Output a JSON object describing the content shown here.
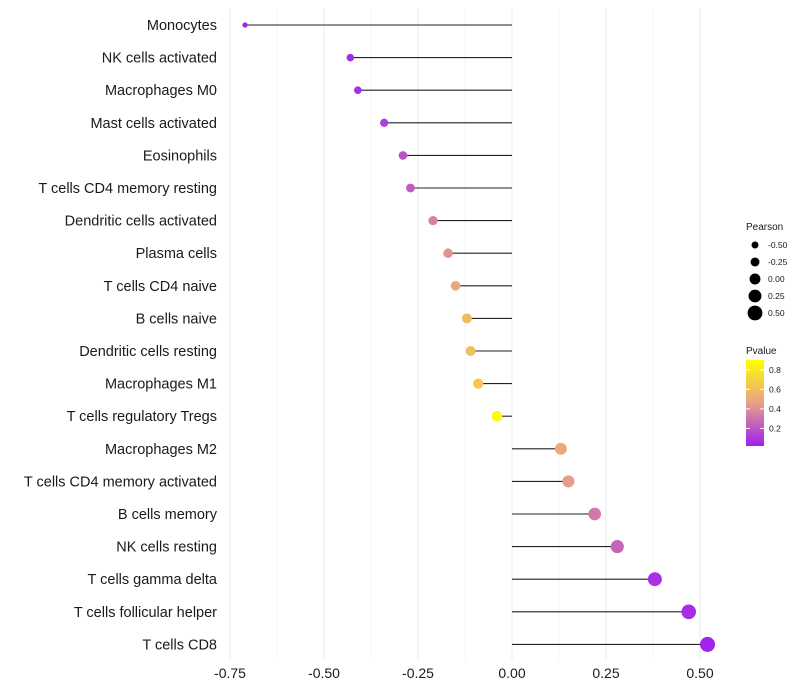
{
  "chart_data": {
    "type": "lollipop",
    "categories": [
      "Monocytes",
      "NK cells activated",
      "Macrophages M0",
      "Mast cells activated",
      "Eosinophils",
      "T cells CD4 memory resting",
      "Dendritic cells activated",
      "Plasma cells",
      "T cells CD4 naive",
      "B cells naive",
      "Dendritic cells resting",
      "Macrophages M1",
      "T cells regulatory  Tregs ",
      "Macrophages M2",
      "T cells CD4 memory activated",
      "B cells memory",
      "NK cells resting",
      "T cells gamma delta",
      "T cells follicular helper",
      "T cells CD8"
    ],
    "pearson": [
      -0.71,
      -0.43,
      -0.41,
      -0.34,
      -0.29,
      -0.27,
      -0.21,
      -0.17,
      -0.15,
      -0.12,
      -0.11,
      -0.09,
      -0.04,
      0.13,
      0.15,
      0.22,
      0.28,
      0.38,
      0.47,
      0.52
    ],
    "pvalue": [
      0.02,
      0.05,
      0.07,
      0.12,
      0.2,
      0.22,
      0.35,
      0.42,
      0.5,
      0.58,
      0.6,
      0.65,
      0.88,
      0.5,
      0.45,
      0.32,
      0.25,
      0.08,
      0.06,
      0.03
    ],
    "xlim": [
      -0.75,
      0.55
    ],
    "x_ticks": [
      -0.75,
      -0.5,
      -0.25,
      0.0,
      0.25,
      0.5
    ],
    "x_tick_labels": [
      "-0.75",
      "-0.50",
      "-0.25",
      "0.00",
      "0.25",
      "0.50"
    ],
    "xlabel": "",
    "ylabel": "",
    "grid": true,
    "legend": {
      "size": {
        "title": "Pearson",
        "values": [
          -0.5,
          -0.25,
          0.0,
          0.25,
          0.5
        ],
        "labels": [
          "-0.50",
          "-0.25",
          "0.00",
          "0.25",
          "0.50"
        ]
      },
      "color": {
        "title": "Pvalue",
        "ticks": [
          0.8,
          0.6,
          0.4,
          0.2
        ],
        "tick_labels": [
          "0.8",
          "0.6",
          "0.4",
          "0.2"
        ],
        "range": [
          0.02,
          0.9
        ],
        "low_color": "#a020f0",
        "mid_color": "#e8a088",
        "high_color": "#ffff00"
      },
      "placement": "right"
    },
    "stem_color": "#222222",
    "grid_color": "#ebebeb"
  }
}
